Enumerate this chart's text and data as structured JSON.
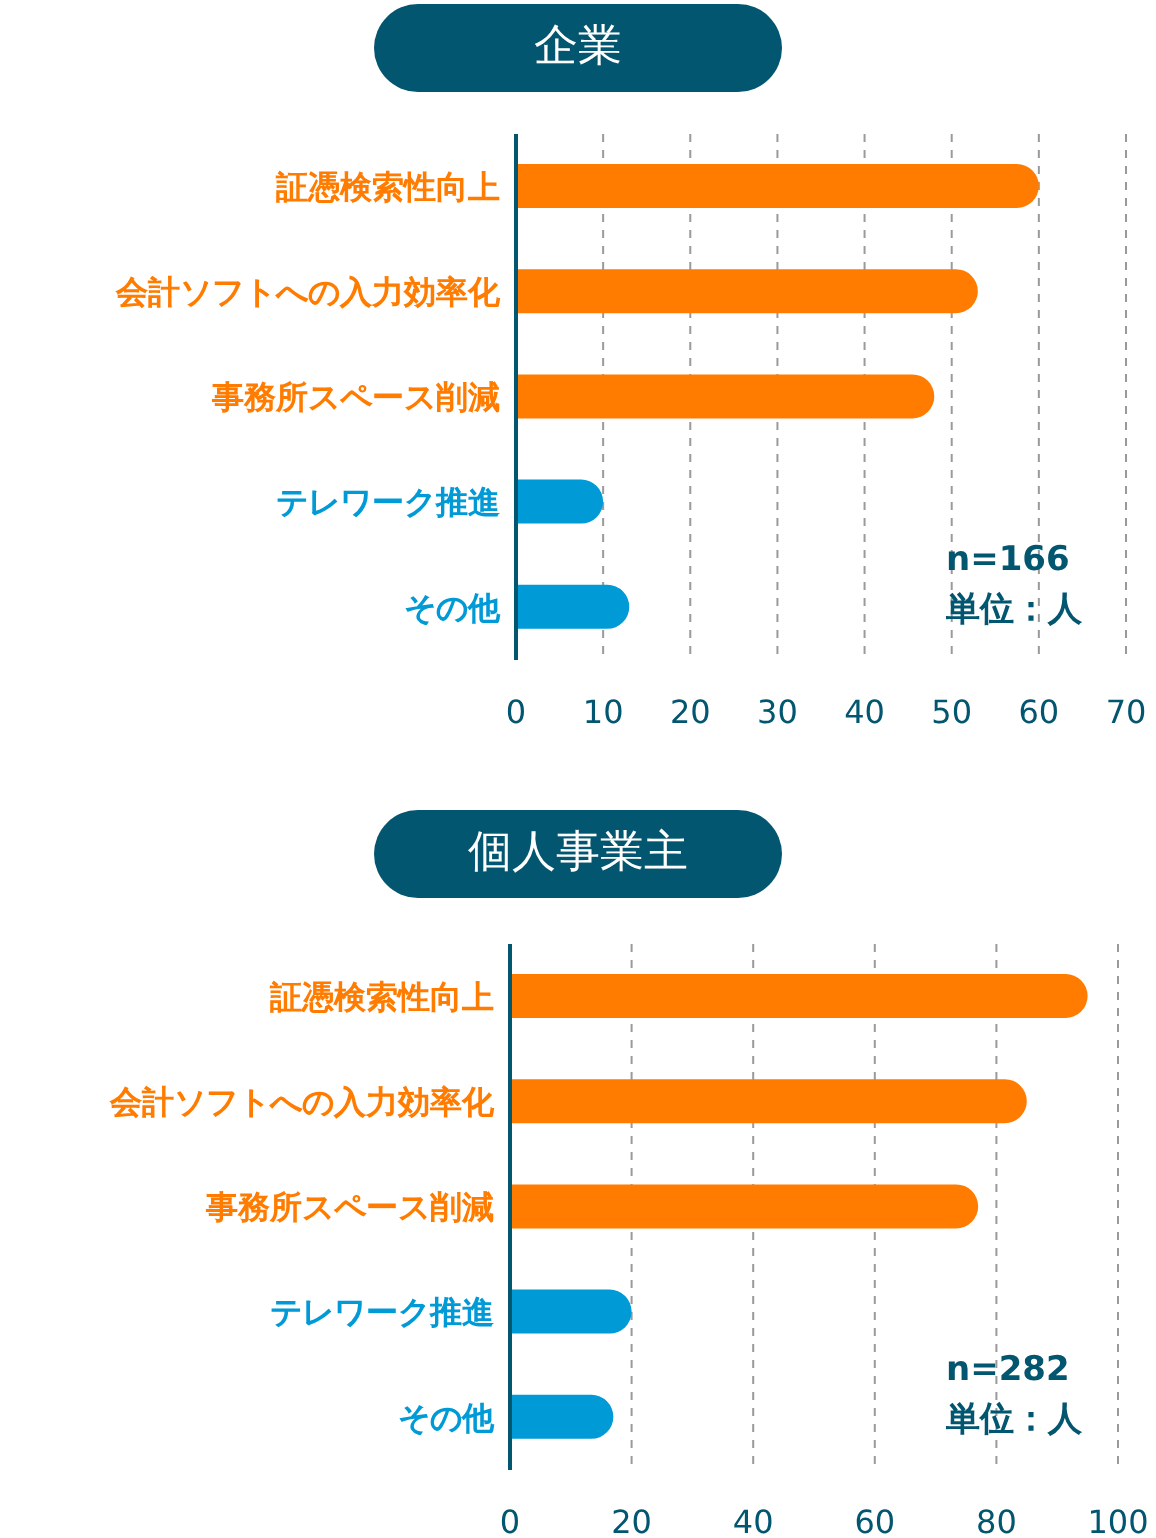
{
  "chart_data": [
    {
      "type": "bar",
      "orientation": "horizontal",
      "title": "企業",
      "categories": [
        "証憑検索性向上",
        "会計ソフトへの入力効率化",
        "事務所スペース削減",
        "テレワーク推進",
        "その他"
      ],
      "values": [
        60,
        53,
        48,
        10,
        13
      ],
      "colors": [
        "#ff7c00",
        "#ff7c00",
        "#ff7c00",
        "#009ad6",
        "#009ad6"
      ],
      "xlim": [
        0,
        70
      ],
      "xticks": [
        0,
        10,
        20,
        30,
        40,
        50,
        60,
        70
      ],
      "grid": "x",
      "annotations": [
        "n=166",
        "単位：人"
      ]
    },
    {
      "type": "bar",
      "orientation": "horizontal",
      "title": "個人事業主",
      "categories": [
        "証憑検索性向上",
        "会計ソフトへの入力効率化",
        "事務所スペース削減",
        "テレワーク推進",
        "その他"
      ],
      "values": [
        95,
        85,
        77,
        20,
        17
      ],
      "colors": [
        "#ff7c00",
        "#ff7c00",
        "#ff7c00",
        "#009ad6",
        "#009ad6"
      ],
      "xlim": [
        0,
        100
      ],
      "xticks": [
        0,
        20,
        40,
        60,
        80,
        100
      ],
      "grid": "x",
      "annotations": [
        "n=282",
        "単位：人"
      ]
    }
  ]
}
